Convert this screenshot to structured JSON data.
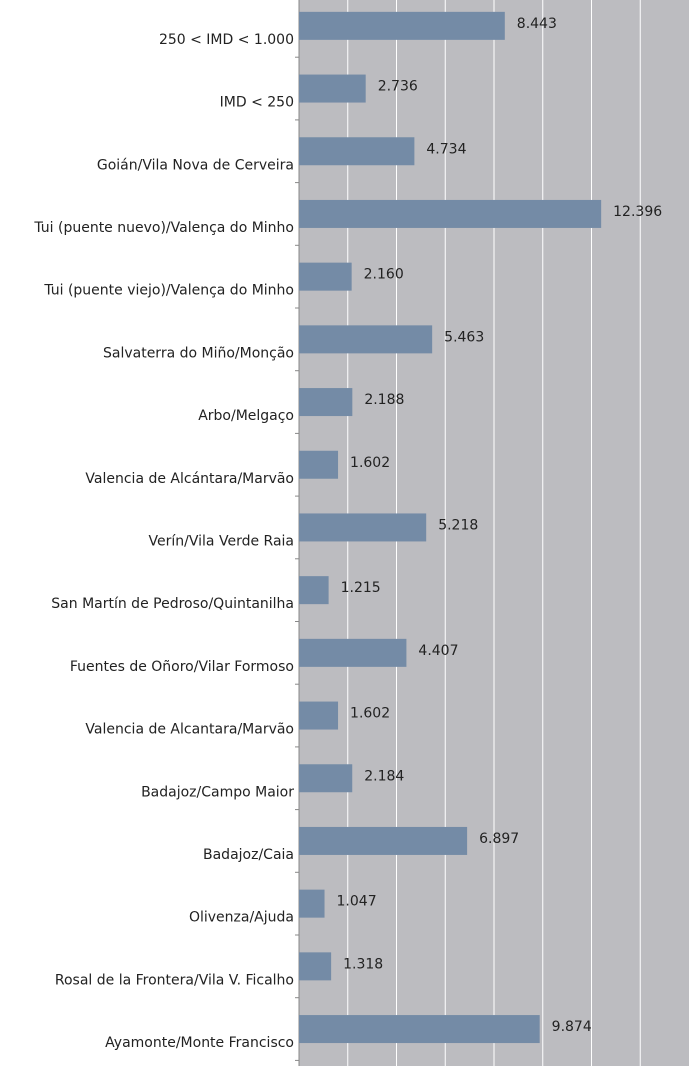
{
  "chart_data": {
    "type": "barh",
    "categories": [
      "250 < IMD < 1.000",
      "IMD < 250",
      "Goián/Vila Nova de Cerveira",
      "Tui (puente nuevo)/Valença do Minho",
      "Tui (puente viejo)/Valença do Minho",
      "Salvaterra do Miño/Monção",
      "Arbo/Melgaço",
      "Valencia de Alcántara/Marvão",
      "Verín/Vila Verde Raia",
      "San Martín de Pedroso/Quintanilha",
      "Fuentes de Oñoro/Vilar Formoso",
      "Valencia de Alcantara/Marvão",
      "Badajoz/Campo Maior",
      "Badajoz/Caia",
      "Olivenza/Ajuda",
      "Rosal de la Frontera/Vila V. Ficalho",
      "Ayamonte/Monte Francisco"
    ],
    "values": [
      8443,
      2736,
      4734,
      12396,
      2160,
      5463,
      2188,
      1602,
      5218,
      1215,
      4407,
      1602,
      2184,
      6897,
      1047,
      1318,
      9874
    ],
    "value_labels": [
      "8.443",
      "2.736",
      "4.734",
      "12.396",
      "2.160",
      "5.463",
      "2.188",
      "1.602",
      "5.218",
      "1.215",
      "4.407",
      "1.602",
      "2.184",
      "6.897",
      "1.047",
      "1.318",
      "9.874"
    ],
    "color": "#748ba6",
    "xlim": [
      0,
      16000
    ],
    "xticks": [
      0,
      2000,
      4000,
      6000,
      8000,
      10000,
      12000,
      14000
    ],
    "grid": true
  }
}
